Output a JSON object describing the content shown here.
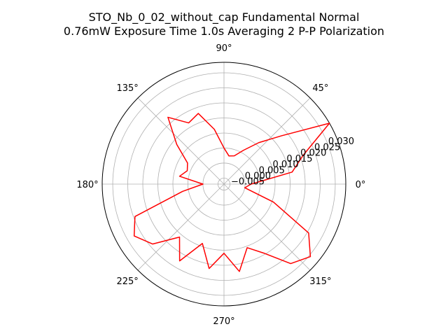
{
  "chart_data": {
    "type": "line",
    "projection": "polar",
    "title_lines": [
      "STO_Nb_0_02_without_cap Fundamental Normal",
      "0.76mW Exposure Time 1.0s Averaging 2 P-P  Polarization"
    ],
    "angle_tick_labels": [
      "0°",
      "45°",
      "90°",
      "135°",
      "180°",
      "225°",
      "270°",
      "315°"
    ],
    "angle_ticks_deg": [
      0,
      45,
      90,
      135,
      180,
      225,
      270,
      315
    ],
    "radial_tick_labels": [
      "−0.005",
      "0.000",
      "0.005",
      "0.010",
      "0.015",
      "0.020",
      "0.025",
      "0.030"
    ],
    "radial_ticks": [
      -0.005,
      0.0,
      0.005,
      0.01,
      0.015,
      0.02,
      0.025,
      0.03
    ],
    "rlim": [
      -0.007,
      0.0335
    ],
    "grid": true,
    "series": [
      {
        "color": "#ff0000",
        "theta_deg": [
          0,
          10,
          20,
          30,
          40,
          50,
          60,
          70,
          80,
          90,
          100,
          110,
          120,
          130,
          140,
          150,
          160,
          170,
          180,
          190,
          200,
          210,
          220,
          230,
          240,
          250,
          260,
          270,
          280,
          290,
          300,
          310,
          320,
          330,
          340,
          350,
          360
        ],
        "r": [
          0.002,
          0.016,
          0.021,
          0.0335,
          0.018,
          0.011,
          0.006,
          0.003,
          0.0025,
          0.005,
          0.0115,
          0.018,
          0.0165,
          0.022,
          0.0135,
          0.007,
          0.006,
          0.008,
          0.0,
          0.007,
          0.0245,
          0.0275,
          0.024,
          0.016,
          0.0225,
          0.014,
          0.0215,
          0.016,
          0.0225,
          0.0155,
          0.0195,
          0.0275,
          0.0305,
          0.0255,
          0.0105,
          0.0,
          0.002
        ]
      }
    ]
  }
}
